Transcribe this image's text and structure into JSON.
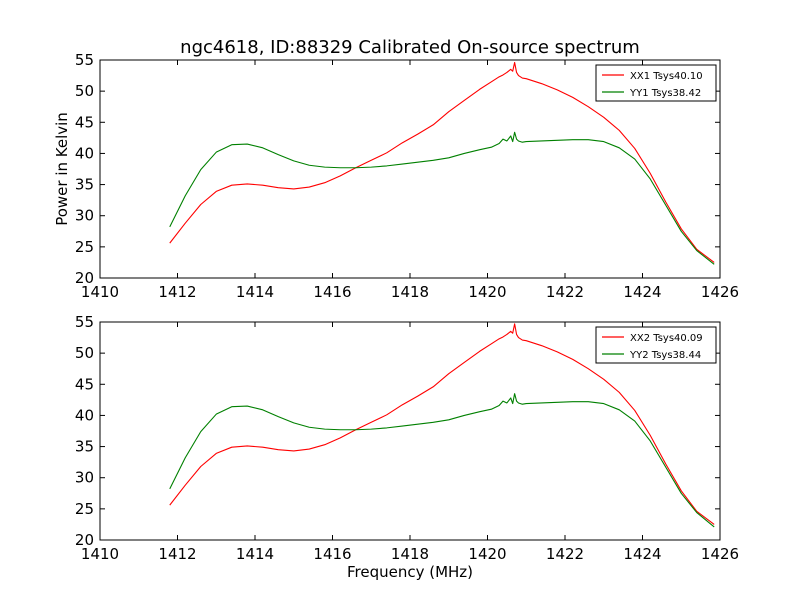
{
  "chart_data": [
    {
      "type": "line",
      "title": "ngc4618, ID:88329 Calibrated On-source spectrum",
      "xlabel": "",
      "ylabel": "Power in Kelvin",
      "xlim": [
        1410,
        1426
      ],
      "ylim": [
        20,
        55
      ],
      "xticks": [
        "1410",
        "1412",
        "1414",
        "1416",
        "1418",
        "1420",
        "1422",
        "1424",
        "1426"
      ],
      "yticks": [
        "20",
        "25",
        "30",
        "35",
        "40",
        "45",
        "50",
        "55"
      ],
      "legend_position": "top-right",
      "series": [
        {
          "name": "XX1 Tsys40.10",
          "color": "#ff0000",
          "x": [
            1411.8,
            1412.2,
            1412.6,
            1413.0,
            1413.4,
            1413.8,
            1414.2,
            1414.6,
            1415.0,
            1415.4,
            1415.8,
            1416.2,
            1416.6,
            1417.0,
            1417.4,
            1417.8,
            1418.2,
            1418.6,
            1419.0,
            1419.4,
            1419.8,
            1420.1,
            1420.3,
            1420.4,
            1420.5,
            1420.6,
            1420.65,
            1420.7,
            1420.75,
            1420.8,
            1420.9,
            1421.0,
            1421.4,
            1421.8,
            1422.2,
            1422.6,
            1423.0,
            1423.4,
            1423.8,
            1424.2,
            1424.6,
            1425.0,
            1425.4,
            1425.85
          ],
          "values": [
            25.6,
            28.8,
            31.8,
            33.9,
            34.9,
            35.1,
            34.9,
            34.5,
            34.3,
            34.6,
            35.3,
            36.4,
            37.7,
            38.9,
            40.1,
            41.7,
            43.1,
            44.6,
            46.7,
            48.5,
            50.3,
            51.5,
            52.3,
            52.6,
            53.0,
            53.5,
            53.2,
            54.6,
            53.0,
            52.5,
            52.1,
            52.0,
            51.2,
            50.2,
            49.0,
            47.5,
            45.8,
            43.7,
            40.8,
            36.8,
            32.2,
            27.9,
            24.6,
            22.5
          ]
        },
        {
          "name": "YY1 Tsys38.42",
          "color": "#008000",
          "x": [
            1411.8,
            1412.2,
            1412.6,
            1413.0,
            1413.4,
            1413.8,
            1414.2,
            1414.6,
            1415.0,
            1415.4,
            1415.8,
            1416.2,
            1416.6,
            1417.0,
            1417.4,
            1417.8,
            1418.2,
            1418.6,
            1419.0,
            1419.4,
            1419.8,
            1420.1,
            1420.3,
            1420.4,
            1420.5,
            1420.6,
            1420.65,
            1420.7,
            1420.75,
            1420.8,
            1420.9,
            1421.0,
            1421.4,
            1421.8,
            1422.2,
            1422.6,
            1423.0,
            1423.4,
            1423.8,
            1424.2,
            1424.6,
            1425.0,
            1425.4,
            1425.85
          ],
          "values": [
            28.2,
            33.2,
            37.4,
            40.2,
            41.4,
            41.5,
            40.9,
            39.8,
            38.8,
            38.1,
            37.8,
            37.7,
            37.7,
            37.8,
            38.0,
            38.3,
            38.6,
            38.9,
            39.3,
            40.0,
            40.6,
            41.0,
            41.6,
            42.3,
            42.0,
            42.8,
            41.9,
            43.4,
            42.3,
            42.0,
            41.8,
            41.9,
            42.0,
            42.1,
            42.2,
            42.2,
            41.9,
            40.9,
            39.1,
            35.9,
            31.7,
            27.5,
            24.4,
            22.2
          ]
        }
      ]
    },
    {
      "type": "line",
      "title": "",
      "xlabel": "Frequency (MHz)",
      "ylabel": "",
      "xlim": [
        1410,
        1426
      ],
      "ylim": [
        20,
        55
      ],
      "xticks": [
        "1410",
        "1412",
        "1414",
        "1416",
        "1418",
        "1420",
        "1422",
        "1424",
        "1426"
      ],
      "yticks": [
        "20",
        "25",
        "30",
        "35",
        "40",
        "45",
        "50",
        "55"
      ],
      "legend_position": "top-right",
      "series": [
        {
          "name": "XX2 Tsys40.09",
          "color": "#ff0000",
          "x": [
            1411.8,
            1412.2,
            1412.6,
            1413.0,
            1413.4,
            1413.8,
            1414.2,
            1414.6,
            1415.0,
            1415.4,
            1415.8,
            1416.2,
            1416.6,
            1417.0,
            1417.4,
            1417.8,
            1418.2,
            1418.6,
            1419.0,
            1419.4,
            1419.8,
            1420.1,
            1420.3,
            1420.4,
            1420.5,
            1420.6,
            1420.65,
            1420.7,
            1420.75,
            1420.8,
            1420.9,
            1421.0,
            1421.4,
            1421.8,
            1422.2,
            1422.6,
            1423.0,
            1423.4,
            1423.8,
            1424.2,
            1424.6,
            1425.0,
            1425.4,
            1425.85
          ],
          "values": [
            25.6,
            28.8,
            31.8,
            33.9,
            34.9,
            35.1,
            34.9,
            34.5,
            34.3,
            34.6,
            35.3,
            36.4,
            37.7,
            38.9,
            40.1,
            41.7,
            43.1,
            44.6,
            46.7,
            48.5,
            50.3,
            51.5,
            52.3,
            52.6,
            53.0,
            53.5,
            53.2,
            54.7,
            53.0,
            52.5,
            52.1,
            52.0,
            51.2,
            50.2,
            49.0,
            47.5,
            45.8,
            43.7,
            40.8,
            36.8,
            32.2,
            27.9,
            24.6,
            22.5
          ]
        },
        {
          "name": "YY2 Tsys38.44",
          "color": "#008000",
          "x": [
            1411.8,
            1412.2,
            1412.6,
            1413.0,
            1413.4,
            1413.8,
            1414.2,
            1414.6,
            1415.0,
            1415.4,
            1415.8,
            1416.2,
            1416.6,
            1417.0,
            1417.4,
            1417.8,
            1418.2,
            1418.6,
            1419.0,
            1419.4,
            1419.8,
            1420.1,
            1420.3,
            1420.4,
            1420.5,
            1420.6,
            1420.65,
            1420.7,
            1420.75,
            1420.8,
            1420.9,
            1421.0,
            1421.4,
            1421.8,
            1422.2,
            1422.6,
            1423.0,
            1423.4,
            1423.8,
            1424.2,
            1424.6,
            1425.0,
            1425.4,
            1425.85
          ],
          "values": [
            28.2,
            33.2,
            37.4,
            40.2,
            41.4,
            41.5,
            40.9,
            39.8,
            38.8,
            38.1,
            37.8,
            37.7,
            37.7,
            37.8,
            38.0,
            38.3,
            38.6,
            38.9,
            39.3,
            40.0,
            40.6,
            41.0,
            41.6,
            42.3,
            42.0,
            42.8,
            41.9,
            43.5,
            42.3,
            42.0,
            41.8,
            41.9,
            42.0,
            42.1,
            42.2,
            42.2,
            41.9,
            40.9,
            39.1,
            35.9,
            31.7,
            27.5,
            24.4,
            22.1
          ]
        }
      ]
    }
  ]
}
